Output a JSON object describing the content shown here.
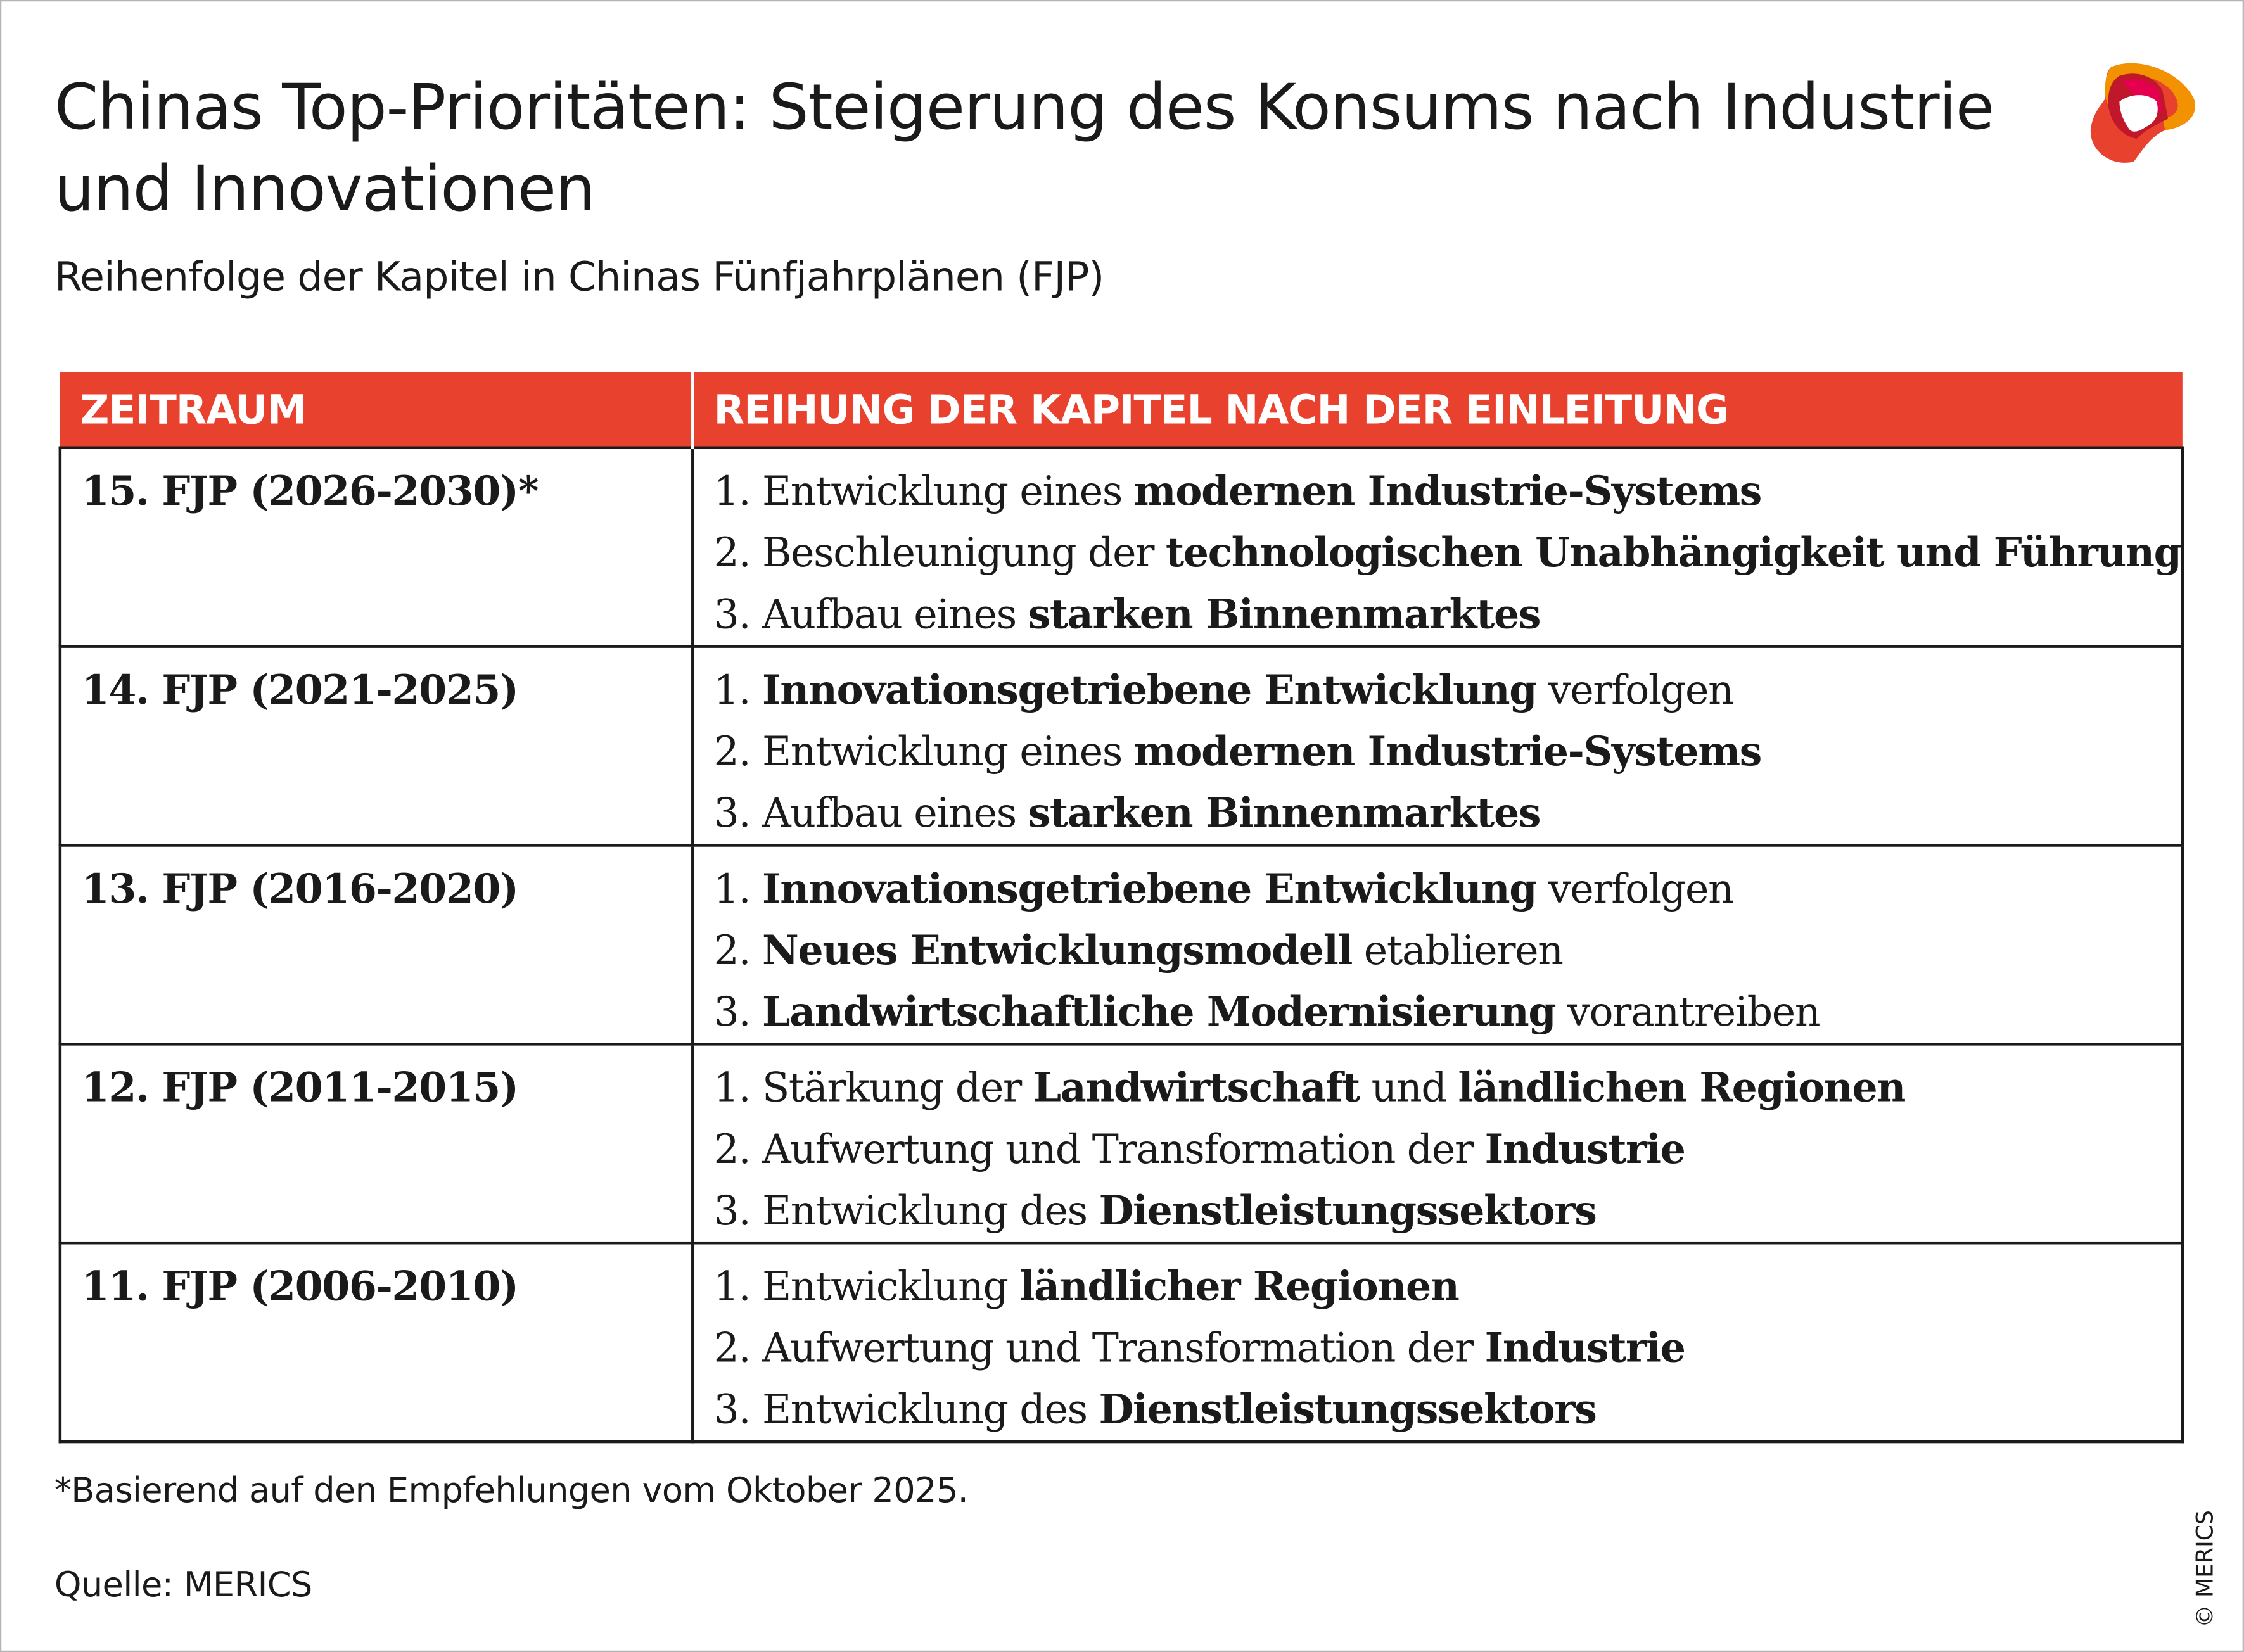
{
  "title": "Chinas Top-Prioritäten: Steigerung des Konsums nach Industrie und Innovationen",
  "subtitle": "Reihenfolge der Kapitel in Chinas Fünfjahrplänen (FJP)",
  "logo": {
    "icon": "merics-logo",
    "colors": [
      "#c0182a",
      "#e4004f",
      "#f39200",
      "#e8412d"
    ]
  },
  "table": {
    "header_color": "#e8412d",
    "headers": [
      "ZEITRAUM",
      "REIHUNG DER KAPITEL NACH DER EINLEITUNG"
    ],
    "rows": [
      {
        "period": "15. FJP (2026-2030)*",
        "items": [
          [
            [
              "1. Entwicklung eines ",
              false
            ],
            [
              "modernen Industrie-Systems",
              true
            ]
          ],
          [
            [
              "2. Beschleunigung der ",
              false
            ],
            [
              "technologischen Unabhängigkeit und Führung",
              true
            ]
          ],
          [
            [
              "3. Aufbau eines ",
              false
            ],
            [
              "starken Binnenmarktes",
              true
            ]
          ]
        ]
      },
      {
        "period": "14. FJP (2021-2025)",
        "items": [
          [
            [
              "1. ",
              false
            ],
            [
              "Innovationsgetriebene Entwicklung",
              true
            ],
            [
              " verfolgen",
              false
            ]
          ],
          [
            [
              "2. Entwicklung eines ",
              false
            ],
            [
              "modernen Industrie-Systems",
              true
            ]
          ],
          [
            [
              "3. Aufbau eines ",
              false
            ],
            [
              "starken Binnenmarktes",
              true
            ]
          ]
        ]
      },
      {
        "period": "13. FJP (2016-2020)",
        "items": [
          [
            [
              "1. ",
              false
            ],
            [
              "Innovationsgetriebene Entwicklung",
              true
            ],
            [
              " verfolgen",
              false
            ]
          ],
          [
            [
              "2. ",
              false
            ],
            [
              "Neues Entwicklungsmodell",
              true
            ],
            [
              " etablieren",
              false
            ]
          ],
          [
            [
              "3. ",
              false
            ],
            [
              "Landwirtschaftliche Modernisierung",
              true
            ],
            [
              " vorantreiben",
              false
            ]
          ]
        ]
      },
      {
        "period": "12. FJP (2011-2015)",
        "items": [
          [
            [
              "1. Stärkung der ",
              false
            ],
            [
              "Landwirtschaft",
              true
            ],
            [
              " und ",
              false
            ],
            [
              "ländlichen Regionen",
              true
            ]
          ],
          [
            [
              "2. Aufwertung und Transformation der ",
              false
            ],
            [
              "Industrie",
              true
            ]
          ],
          [
            [
              "3. Entwicklung des ",
              false
            ],
            [
              "Dienstleistungssektors",
              true
            ]
          ]
        ]
      },
      {
        "period": "11. FJP (2006-2010)",
        "items": [
          [
            [
              "1. Entwicklung ",
              false
            ],
            [
              "ländlicher Regionen",
              true
            ]
          ],
          [
            [
              "2. Aufwertung und Transformation der ",
              false
            ],
            [
              "Industrie",
              true
            ]
          ],
          [
            [
              "3. Entwicklung des ",
              false
            ],
            [
              "Dienstleistungssektors",
              true
            ]
          ]
        ]
      }
    ]
  },
  "footnote": "*Basierend auf den Empfehlungen vom Oktober 2025.",
  "source": "Quelle: MERICS",
  "copyright": "© MERICS"
}
